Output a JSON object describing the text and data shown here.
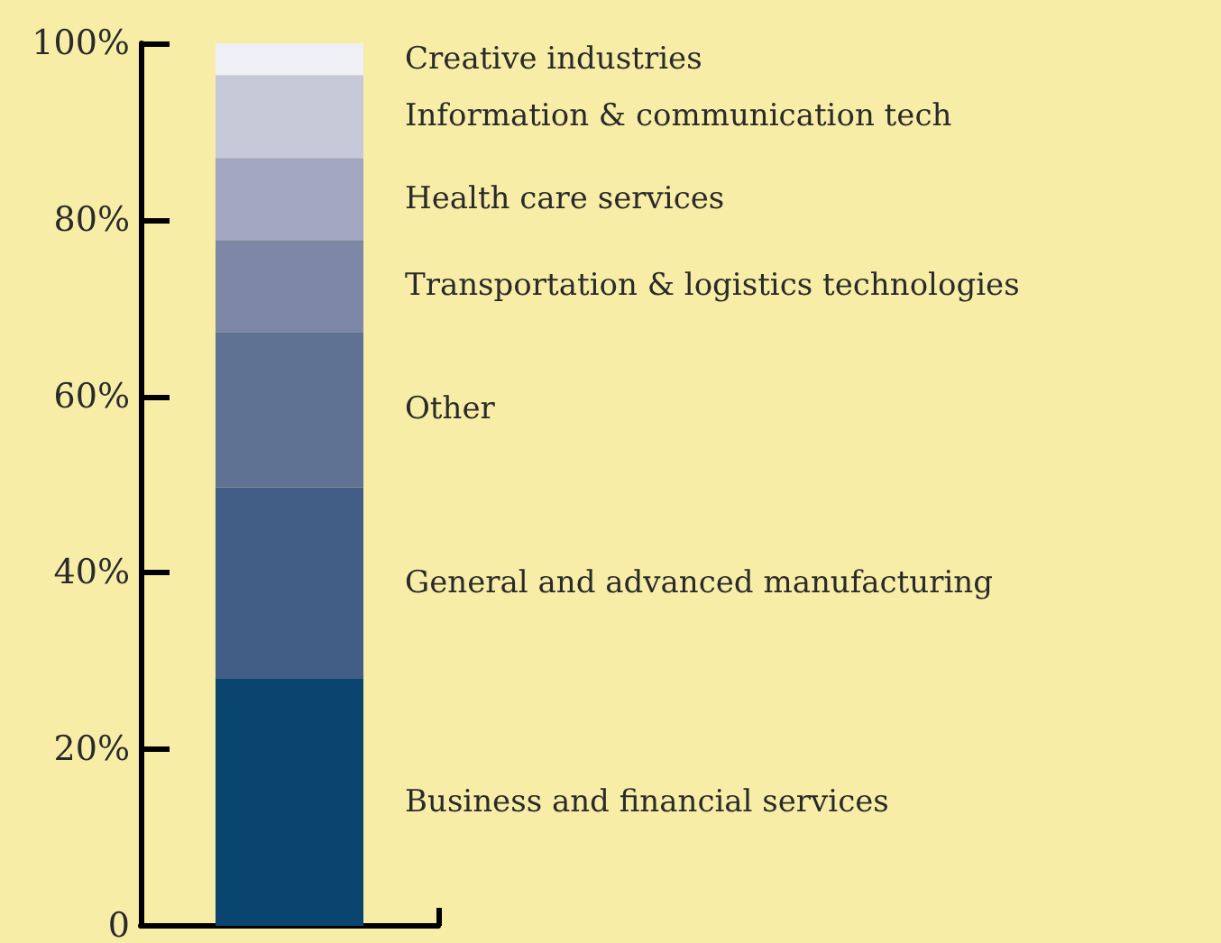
{
  "chart_data": {
    "type": "bar",
    "stacked": true,
    "categories": [
      null
    ],
    "series": [
      {
        "name": "Business and financial services",
        "color": "#0a4570",
        "values": [
          28.0
        ]
      },
      {
        "name": "General and advanced manufacturing",
        "color": "#425e86",
        "values": [
          21.7
        ]
      },
      {
        "name": "Other",
        "color": "#607294",
        "values": [
          17.6
        ]
      },
      {
        "name": "Transportation & logistics technologies",
        "color": "#7d88a6",
        "values": [
          10.4
        ]
      },
      {
        "name": "Health care services",
        "color": "#a2a6c0",
        "values": [
          9.3
        ]
      },
      {
        "name": "Information & communication tech",
        "color": "#c5c9d8",
        "values": [
          9.4
        ]
      },
      {
        "name": "Creative industries",
        "color": "#eff0f5",
        "values": [
          3.6
        ]
      }
    ],
    "ylim": [
      0,
      100
    ],
    "yticks": [
      {
        "value": 0,
        "label": "0"
      },
      {
        "value": 20,
        "label": "20%"
      },
      {
        "value": 40,
        "label": "40%"
      },
      {
        "value": 60,
        "label": "60%"
      },
      {
        "value": 80,
        "label": "80%"
      },
      {
        "value": 100,
        "label": "100%"
      }
    ],
    "grid": false,
    "legend": false
  }
}
